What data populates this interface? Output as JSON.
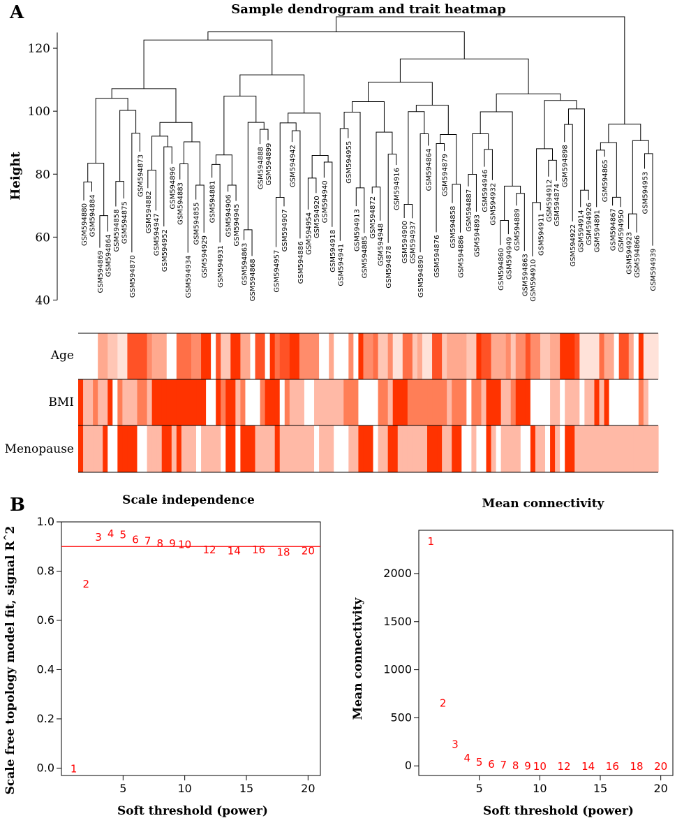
{
  "panel_labels": {
    "a": "A",
    "b": "B"
  },
  "chart_data": [
    {
      "type": "dendrogram",
      "title": "Sample dendrogram and trait heatmap",
      "ylabel": "Height",
      "ylim": [
        40,
        130
      ],
      "yticks": [
        40,
        60,
        80,
        100,
        120
      ],
      "leaves": [
        "GSM594880",
        "GSM594884",
        "GSM594869",
        "GSM594864",
        "GSM594858",
        "GSM594875",
        "GSM594870",
        "GSM594873",
        "GSM594882",
        "GSM594947",
        "GSM594952",
        "GSM594896",
        "GSM594883",
        "GSM594934",
        "GSM594855",
        "GSM594929",
        "GSM594881",
        "GSM594931",
        "GSM594906",
        "GSM594945",
        "GSM594863",
        "GSM594868",
        "GSM594888",
        "GSM594899",
        "GSM594957",
        "GSM594907",
        "GSM594942",
        "GSM594886",
        "GSM594954",
        "GSM594920",
        "GSM594940",
        "GSM594918",
        "GSM594941",
        "GSM594955",
        "GSM594913",
        "GSM594885",
        "GSM594872",
        "GSM594948",
        "GSM594878",
        "GSM594916",
        "GSM594900",
        "GSM594937",
        "GSM594890",
        "GSM594864",
        "GSM594876",
        "GSM594879",
        "GSM594858",
        "GSM594886",
        "GSM594887",
        "GSM594893",
        "GSM594946",
        "GSM594932",
        "GSM594860",
        "GSM594949",
        "GSM594889",
        "GSM594863",
        "GSM594910",
        "GSM594911",
        "GSM594912",
        "GSM594874",
        "GSM594898",
        "GSM594922",
        "GSM594914",
        "GSM594926",
        "GSM594891",
        "GSM594865",
        "GSM594867",
        "GSM594950",
        "GSM594923",
        "GSM594866",
        "GSM594953",
        "GSM594939"
      ],
      "merge_heights": [
        130,
        126,
        123,
        121,
        120,
        117,
        116,
        110,
        108,
        106,
        104,
        103,
        100,
        99,
        97,
        95,
        93,
        92,
        90,
        88,
        86,
        84,
        82,
        80,
        78,
        76,
        74,
        72,
        70,
        68
      ]
    },
    {
      "type": "heatmap",
      "rows": [
        "Age",
        "BMI",
        "Menopause"
      ],
      "colors": {
        "high": "#ff3300",
        "mid": "#ff7e57",
        "low": "#ffb9a6",
        "none": "#ffffff"
      },
      "columns": 72
    },
    {
      "type": "scatter",
      "title": "Scale independence",
      "xlabel": "Soft threshold (power)",
      "ylabel": "Scale free topology model fit, signal R^2",
      "x": [
        1,
        2,
        3,
        4,
        5,
        6,
        7,
        8,
        9,
        10,
        12,
        14,
        16,
        18,
        20
      ],
      "y": [
        0.0,
        0.75,
        0.94,
        0.955,
        0.95,
        0.93,
        0.925,
        0.915,
        0.915,
        0.91,
        0.89,
        0.885,
        0.89,
        0.88,
        0.885
      ],
      "xlim": [
        0,
        21
      ],
      "ylim": [
        -0.03,
        1.0
      ],
      "xticks": [
        5,
        10,
        15,
        20
      ],
      "yticks": [
        0.0,
        0.2,
        0.4,
        0.6,
        0.8,
        1.0
      ],
      "hline": 0.9,
      "marker_color": "#ff0000"
    },
    {
      "type": "scatter",
      "title": "Mean connectivity",
      "xlabel": "Soft threshold (power)",
      "ylabel": "Mean connectivity",
      "x": [
        1,
        2,
        3,
        4,
        5,
        6,
        7,
        8,
        9,
        10,
        12,
        14,
        16,
        18,
        20
      ],
      "y": [
        2340,
        660,
        230,
        90,
        45,
        25,
        18,
        10,
        5,
        3,
        1,
        1,
        0,
        0,
        0
      ],
      "xlim": [
        0,
        21
      ],
      "ylim": [
        -100,
        2450
      ],
      "xticks": [
        5,
        10,
        15,
        20
      ],
      "yticks": [
        0,
        500,
        1000,
        1500,
        2000
      ],
      "marker_color": "#ff0000"
    }
  ]
}
